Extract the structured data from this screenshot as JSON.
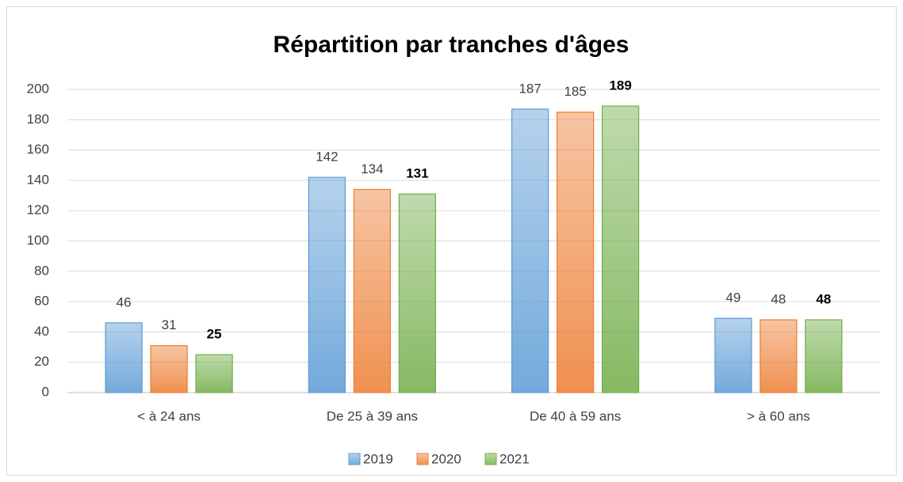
{
  "chart_data": {
    "type": "bar",
    "title": "Répartition par tranches d'âges",
    "categories": [
      "< à 24 ans",
      "De 25 à 39 ans",
      "De 40 à 59 ans",
      "> à 60 ans"
    ],
    "series": [
      {
        "name": "2019",
        "color": "#5b9bd5",
        "values": [
          46,
          142,
          187,
          49
        ]
      },
      {
        "name": "2020",
        "color": "#ed7d31",
        "values": [
          31,
          134,
          185,
          48
        ]
      },
      {
        "name": "2021",
        "color": "#70ad47",
        "values": [
          25,
          131,
          189,
          48
        ]
      }
    ],
    "ylim": [
      0,
      200
    ],
    "yticks": [
      0,
      20,
      40,
      60,
      80,
      100,
      120,
      140,
      160,
      180,
      200
    ],
    "grid": true,
    "legend": "bottom"
  }
}
